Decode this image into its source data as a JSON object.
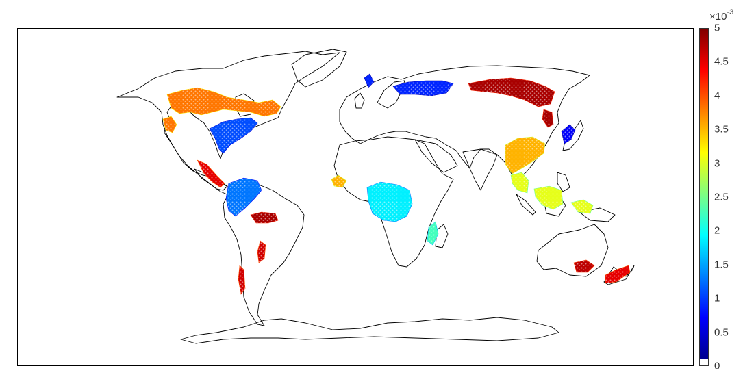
{
  "colorbar": {
    "multiplier_base": "×10",
    "multiplier_exponent": "-3",
    "ticks": [
      "0",
      "0.5",
      "1",
      "1.5",
      "2",
      "2.5",
      "3",
      "3.5",
      "4",
      "4.5",
      "5"
    ],
    "range": [
      0,
      5
    ],
    "colormap": "jet",
    "lowest_color": "#ffffff",
    "colors": [
      "#00008f",
      "#0000ff",
      "#0080ff",
      "#00ffff",
      "#80ff80",
      "#ffff00",
      "#ff8000",
      "#ff0000",
      "#800000"
    ]
  },
  "map": {
    "projection": "equirectangular",
    "land_outline_color": "#000000",
    "regions": [
      {
        "name": "north-america-boreal",
        "level": 3.8
      },
      {
        "name": "north-america-east",
        "level": 1.0
      },
      {
        "name": "central-america",
        "level": 4.5
      },
      {
        "name": "amazon",
        "level": 1.2
      },
      {
        "name": "brazil-east",
        "level": 4.8
      },
      {
        "name": "southern-south-america",
        "level": 4.6
      },
      {
        "name": "europe",
        "level": 0.8
      },
      {
        "name": "siberia",
        "level": 4.8
      },
      {
        "name": "congo-basin",
        "level": 1.8
      },
      {
        "name": "west-africa",
        "level": 3.5
      },
      {
        "name": "madagascar",
        "level": 2.2
      },
      {
        "name": "east-asia",
        "level": 3.5
      },
      {
        "name": "japan",
        "level": 0.6
      },
      {
        "name": "southeast-asia",
        "level": 3.0
      },
      {
        "name": "new-zealand",
        "level": 4.5
      },
      {
        "name": "southeast-australia",
        "level": 4.7
      }
    ]
  }
}
